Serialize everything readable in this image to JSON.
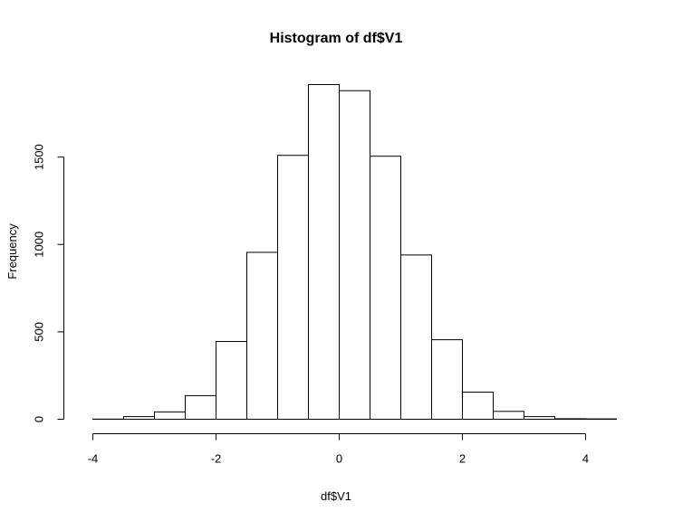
{
  "chart_data": {
    "type": "bar",
    "title": "Histogram of df$V1",
    "xlabel": "df$V1",
    "ylabel": "Frequency",
    "bin_edges": [
      -4.0,
      -3.5,
      -3.0,
      -2.5,
      -2.0,
      -1.5,
      -1.0,
      -0.5,
      0.0,
      0.5,
      1.0,
      1.5,
      2.0,
      2.5,
      3.0,
      3.5,
      4.0,
      4.5
    ],
    "values": [
      1,
      15,
      42,
      135,
      445,
      955,
      1510,
      1915,
      1880,
      1505,
      940,
      455,
      155,
      45,
      15,
      3,
      2
    ],
    "xlim": [
      -4,
      4.5
    ],
    "ylim": [
      0,
      1915
    ],
    "x_ticks": [
      -4,
      -2,
      0,
      2,
      4
    ],
    "x_tick_labels": [
      "-4",
      "-2",
      "0",
      "2",
      "4"
    ],
    "y_ticks": [
      0,
      500,
      1000,
      1500
    ],
    "y_tick_labels": [
      "0",
      "500",
      "1000",
      "1500"
    ],
    "grid": false,
    "legend": "none",
    "colors": {
      "bar_fill": "#ffffff",
      "bar_stroke": "#000000",
      "axis": "#000000",
      "background": "#ffffff"
    }
  }
}
